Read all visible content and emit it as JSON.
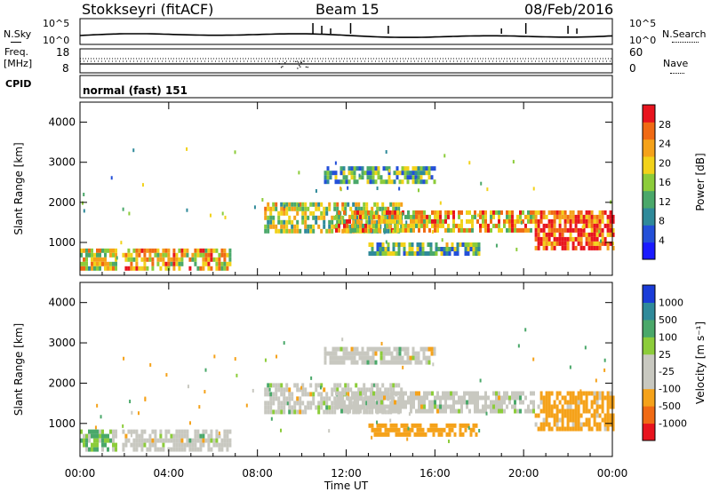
{
  "header": {
    "station": "Stokkseyri (fitACF)",
    "beam": "Beam 15",
    "date": "08/Feb/2016"
  },
  "nsky_panel": {
    "left_label": "N.Sky",
    "right_label": "N.Search",
    "y_ticks": [
      "10^5",
      "10^0"
    ]
  },
  "freq_panel": {
    "left_label_1": "Freq.",
    "left_label_2": "[MHz]",
    "left_ticks": [
      "18",
      "8"
    ],
    "right_ticks": [
      "60",
      "0"
    ],
    "right_label": "Nave"
  },
  "cpid_panel": {
    "left_label": "CPID",
    "program": "normal (fast) 151"
  },
  "colors": {
    "power_scale": [
      "#1a1aff",
      "#2450d8",
      "#2f8a9a",
      "#4aa86a",
      "#8ccc3a",
      "#f2d21a",
      "#f5a21a",
      "#f06a14",
      "#e8141e"
    ],
    "velocity_scale": [
      "#e8141e",
      "#f06a14",
      "#f5a21a",
      "#c8c8c0",
      "#c8c8c0",
      "#8ccc3a",
      "#4aa86a",
      "#2f8a9a",
      "#1a3cd8"
    ],
    "ground_scatter": "#c8c8c0"
  },
  "chart_data": [
    {
      "type": "heatmap",
      "name": "Power",
      "ylabel": "Slant Range [km]",
      "colorbar_label": "Power [dB]",
      "colorbar_ticks": [
        "28",
        "24",
        "20",
        "16",
        "12",
        "8",
        "4"
      ],
      "ylim": [
        180,
        4500
      ],
      "y_ticks": [
        1000,
        2000,
        3000,
        4000
      ],
      "xlim_hours": [
        0,
        24
      ],
      "x_ticks": [
        "00:00",
        "04:00",
        "08:00",
        "12:00",
        "16:00",
        "20:00",
        "00:00"
      ],
      "echo_regions": [
        {
          "t0": 0.0,
          "t1": 1.6,
          "r0": 300,
          "r1": 850,
          "power_db": 18
        },
        {
          "t0": 1.9,
          "t1": 6.8,
          "r0": 300,
          "r1": 850,
          "power_db": 20
        },
        {
          "t0": 8.3,
          "t1": 14.5,
          "r0": 1300,
          "r1": 2000,
          "power_db": 16
        },
        {
          "t0": 11.5,
          "t1": 20.5,
          "r0": 1300,
          "r1": 1800,
          "power_db": 20
        },
        {
          "t0": 13.0,
          "t1": 18.0,
          "r0": 700,
          "r1": 1000,
          "power_db": 12
        },
        {
          "t0": 11.0,
          "t1": 16.0,
          "r0": 2500,
          "r1": 2900,
          "power_db": 12
        },
        {
          "t0": 20.5,
          "t1": 24.0,
          "r0": 900,
          "r1": 1800,
          "power_db": 26
        }
      ]
    },
    {
      "type": "heatmap",
      "name": "Velocity",
      "ylabel": "Slant Range [km]",
      "xlabel": "Time UT",
      "colorbar_label": "Velocity [m s⁻¹]",
      "colorbar_ticks": [
        "1000",
        "500",
        "100",
        "25",
        "-25",
        "-100",
        "-500",
        "-1000"
      ],
      "ylim": [
        180,
        4500
      ],
      "y_ticks": [
        1000,
        2000,
        3000,
        4000
      ],
      "xlim_hours": [
        0,
        24
      ],
      "x_ticks": [
        "00:00",
        "04:00",
        "08:00",
        "12:00",
        "16:00",
        "20:00",
        "00:00"
      ],
      "echo_regions": [
        {
          "t0": 0.0,
          "t1": 1.6,
          "r0": 300,
          "r1": 850,
          "velocity": 100
        },
        {
          "t0": 1.9,
          "t1": 6.8,
          "r0": 300,
          "r1": 850,
          "velocity": 0
        },
        {
          "t0": 8.3,
          "t1": 14.5,
          "r0": 1300,
          "r1": 2000,
          "velocity": 0
        },
        {
          "t0": 11.5,
          "t1": 20.5,
          "r0": 1300,
          "r1": 1800,
          "velocity": 0
        },
        {
          "t0": 13.0,
          "t1": 18.0,
          "r0": 700,
          "r1": 1000,
          "velocity": -300
        },
        {
          "t0": 11.0,
          "t1": 16.0,
          "r0": 2500,
          "r1": 2900,
          "velocity": 0
        },
        {
          "t0": 20.5,
          "t1": 24.0,
          "r0": 900,
          "r1": 1800,
          "velocity": -200
        }
      ]
    }
  ]
}
